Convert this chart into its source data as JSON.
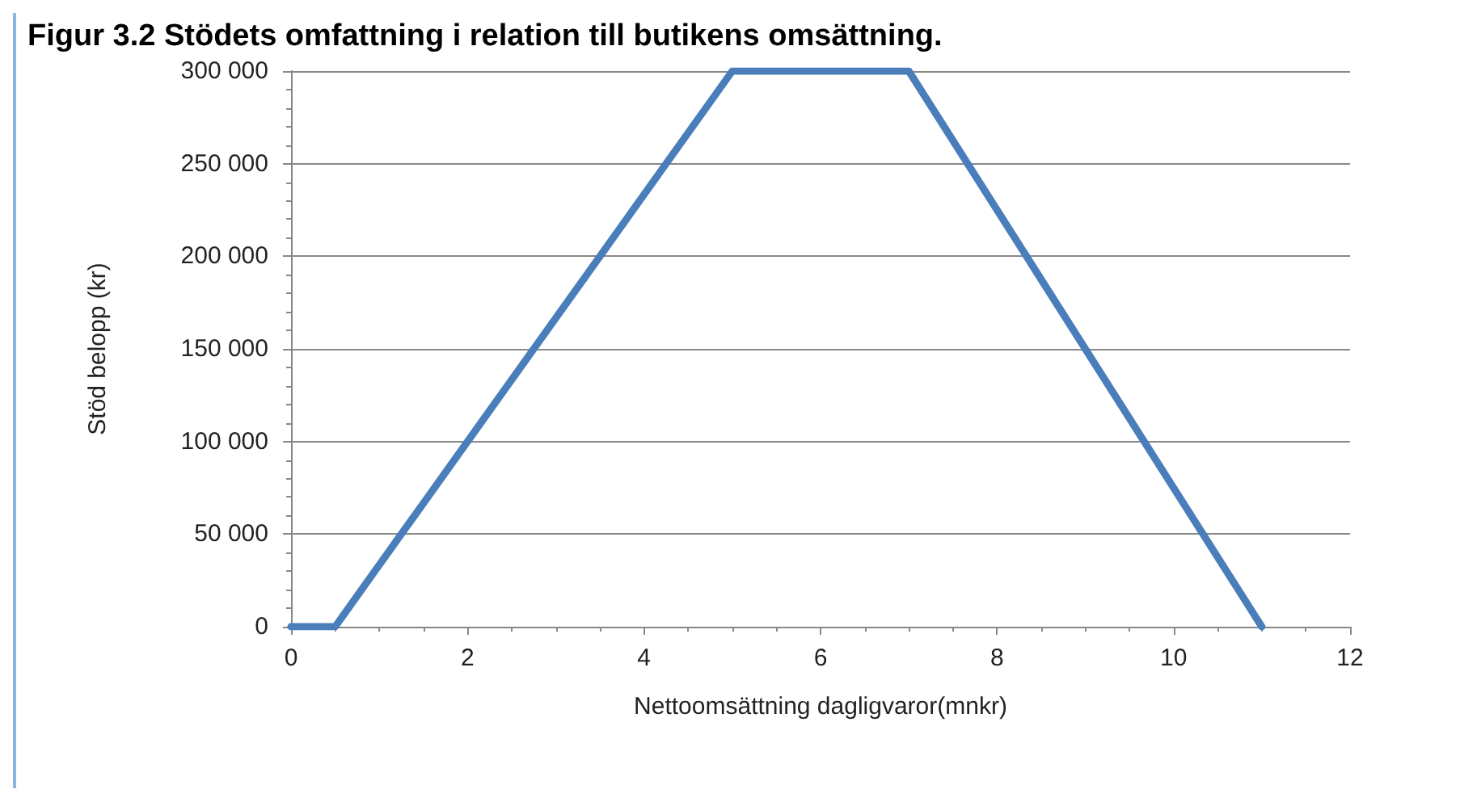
{
  "chart_data": {
    "type": "line",
    "title": "Figur 3.2 Stödets omfattning i relation till butikens omsättning.",
    "xlabel": "Nettoomsättning dagligvaror(mnkr)",
    "ylabel": "Stöd belopp (kr)",
    "x": [
      0,
      0.5,
      5,
      7,
      11
    ],
    "series": [
      {
        "color": "#4a7ebb",
        "values": [
          0,
          0,
          300000,
          300000,
          0
        ]
      }
    ],
    "xlim": [
      0,
      12
    ],
    "xticks": [
      0,
      2,
      4,
      6,
      8,
      10,
      12
    ],
    "ylim": [
      0,
      300000
    ],
    "yticks": [
      {
        "value": 0,
        "label": "0"
      },
      {
        "value": 50000,
        "label": "50 000"
      },
      {
        "value": 100000,
        "label": "100 000"
      },
      {
        "value": 150000,
        "label": "150 000"
      },
      {
        "value": 200000,
        "label": "200 000"
      },
      {
        "value": 250000,
        "label": "250 000"
      },
      {
        "value": 300000,
        "label": "300 000"
      }
    ],
    "grid": "y",
    "marker": "none",
    "line_style": "solid"
  }
}
